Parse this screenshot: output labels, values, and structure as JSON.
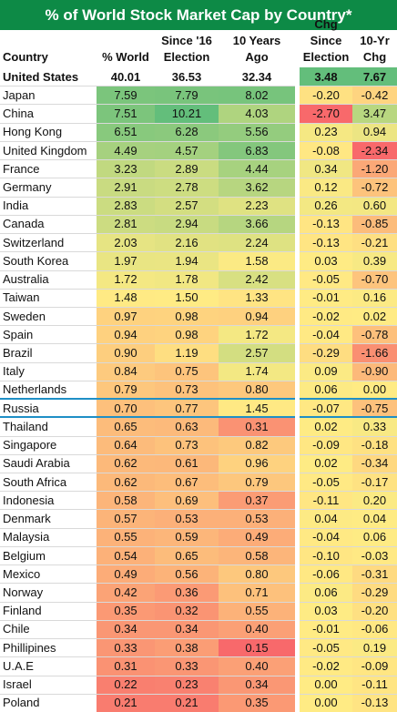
{
  "title": "% of World Stock Market Cap by Country*",
  "headers": {
    "country": "Country",
    "world": "% World",
    "since16_l1": "Since '16",
    "since16_l2": "Election",
    "tenyr_l1": "10 Years",
    "tenyr_l2": "Ago",
    "chg_l1": "Chg Since",
    "chg_l2": "Election",
    "chg10_l1": "10-Yr",
    "chg10_l2": "Chg"
  },
  "highlighted_country": "Russia",
  "chart_data": {
    "type": "table",
    "title": "% of World Stock Market Cap by Country*",
    "columns": [
      "Country",
      "% World",
      "Since '16 Election",
      "10 Years Ago",
      "Chg Since Election",
      "10-Yr Chg"
    ],
    "rows": [
      [
        "United States",
        "40.01",
        "36.53",
        "32.34",
        "3.48",
        "7.67"
      ],
      [
        "Japan",
        "7.59",
        "7.79",
        "8.02",
        "-0.20",
        "-0.42"
      ],
      [
        "China",
        "7.51",
        "10.21",
        "4.03",
        "-2.70",
        "3.47"
      ],
      [
        "Hong Kong",
        "6.51",
        "6.28",
        "5.56",
        "0.23",
        "0.94"
      ],
      [
        "United Kingdom",
        "4.49",
        "4.57",
        "6.83",
        "-0.08",
        "-2.34"
      ],
      [
        "France",
        "3.23",
        "2.89",
        "4.44",
        "0.34",
        "-1.20"
      ],
      [
        "Germany",
        "2.91",
        "2.78",
        "3.62",
        "0.12",
        "-0.72"
      ],
      [
        "India",
        "2.83",
        "2.57",
        "2.23",
        "0.26",
        "0.60"
      ],
      [
        "Canada",
        "2.81",
        "2.94",
        "3.66",
        "-0.13",
        "-0.85"
      ],
      [
        "Switzerland",
        "2.03",
        "2.16",
        "2.24",
        "-0.13",
        "-0.21"
      ],
      [
        "South Korea",
        "1.97",
        "1.94",
        "1.58",
        "0.03",
        "0.39"
      ],
      [
        "Australia",
        "1.72",
        "1.78",
        "2.42",
        "-0.05",
        "-0.70"
      ],
      [
        "Taiwan",
        "1.48",
        "1.50",
        "1.33",
        "-0.01",
        "0.16"
      ],
      [
        "Sweden",
        "0.97",
        "0.98",
        "0.94",
        "-0.02",
        "0.02"
      ],
      [
        "Spain",
        "0.94",
        "0.98",
        "1.72",
        "-0.04",
        "-0.78"
      ],
      [
        "Brazil",
        "0.90",
        "1.19",
        "2.57",
        "-0.29",
        "-1.66"
      ],
      [
        "Italy",
        "0.84",
        "0.75",
        "1.74",
        "0.09",
        "-0.90"
      ],
      [
        "Netherlands",
        "0.79",
        "0.73",
        "0.80",
        "0.06",
        "0.00"
      ],
      [
        "Russia",
        "0.70",
        "0.77",
        "1.45",
        "-0.07",
        "-0.75"
      ],
      [
        "Thailand",
        "0.65",
        "0.63",
        "0.31",
        "0.02",
        "0.33"
      ],
      [
        "Singapore",
        "0.64",
        "0.73",
        "0.82",
        "-0.09",
        "-0.18"
      ],
      [
        "Saudi Arabia",
        "0.62",
        "0.61",
        "0.96",
        "0.02",
        "-0.34"
      ],
      [
        "South Africa",
        "0.62",
        "0.67",
        "0.79",
        "-0.05",
        "-0.17"
      ],
      [
        "Indonesia",
        "0.58",
        "0.69",
        "0.37",
        "-0.11",
        "0.20"
      ],
      [
        "Denmark",
        "0.57",
        "0.53",
        "0.53",
        "0.04",
        "0.04"
      ],
      [
        "Malaysia",
        "0.55",
        "0.59",
        "0.49",
        "-0.04",
        "0.06"
      ],
      [
        "Belgium",
        "0.54",
        "0.65",
        "0.58",
        "-0.10",
        "-0.03"
      ],
      [
        "Mexico",
        "0.49",
        "0.56",
        "0.80",
        "-0.06",
        "-0.31"
      ],
      [
        "Norway",
        "0.42",
        "0.36",
        "0.71",
        "0.06",
        "-0.29"
      ],
      [
        "Finland",
        "0.35",
        "0.32",
        "0.55",
        "0.03",
        "-0.20"
      ],
      [
        "Chile",
        "0.34",
        "0.34",
        "0.40",
        "-0.01",
        "-0.06"
      ],
      [
        "Phillipines",
        "0.33",
        "0.38",
        "0.15",
        "-0.05",
        "0.19"
      ],
      [
        "U.A.E",
        "0.31",
        "0.33",
        "0.40",
        "-0.02",
        "-0.09"
      ],
      [
        "Israel",
        "0.22",
        "0.23",
        "0.34",
        "0.00",
        "-0.11"
      ],
      [
        "Poland",
        "0.21",
        "0.21",
        "0.35",
        "0.00",
        "-0.13"
      ]
    ]
  }
}
